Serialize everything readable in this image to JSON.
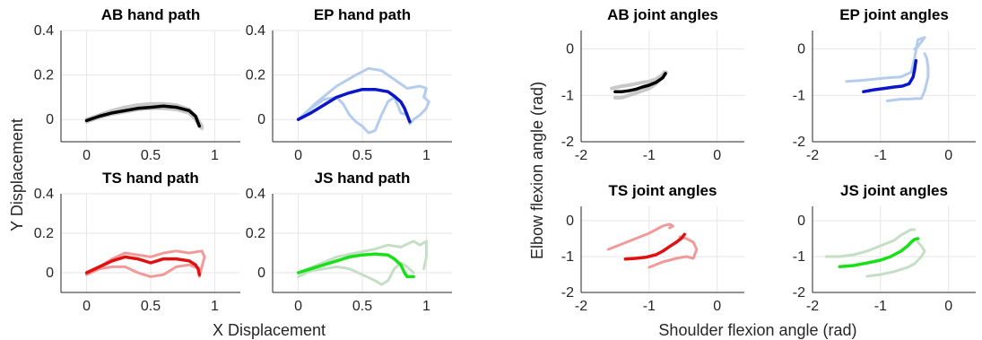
{
  "figure": {
    "left_ylabel": "Y Displacement",
    "left_xlabel": "X Displacement",
    "right_ylabel": "Elbow flexion angle (rad)",
    "right_xlabel": "Shoulder flexion angle (rad)"
  },
  "chart_data": [
    {
      "type": "line",
      "title": "AB hand path",
      "xticks": [
        "0",
        "0.5",
        "1"
      ],
      "yticks": [
        "0",
        "0.2",
        "0.4"
      ],
      "xlim": [
        -0.2,
        1.2
      ],
      "ylim": [
        -0.1,
        0.4
      ],
      "grid": true,
      "series": [
        {
          "color": "#c8c8c8",
          "width": 4,
          "x": [
            0,
            0.1,
            0.2,
            0.3,
            0.4,
            0.5,
            0.6,
            0.7,
            0.8,
            0.85,
            0.9
          ],
          "y": [
            -0.01,
            0.01,
            0.025,
            0.035,
            0.045,
            0.05,
            0.05,
            0.045,
            0.03,
            0.0,
            -0.04
          ]
        },
        {
          "color": "#c8c8c8",
          "width": 4,
          "x": [
            0,
            0.1,
            0.2,
            0.3,
            0.4,
            0.5,
            0.6,
            0.7,
            0.8,
            0.85,
            0.9
          ],
          "y": [
            0.0,
            0.02,
            0.04,
            0.055,
            0.065,
            0.07,
            0.07,
            0.065,
            0.045,
            0.015,
            -0.03
          ]
        },
        {
          "color": "#000000",
          "width": 3.5,
          "x": [
            0,
            0.1,
            0.2,
            0.3,
            0.4,
            0.5,
            0.6,
            0.7,
            0.8,
            0.85,
            0.88
          ],
          "y": [
            -0.005,
            0.015,
            0.03,
            0.04,
            0.05,
            0.055,
            0.06,
            0.055,
            0.04,
            0.015,
            -0.03
          ]
        }
      ]
    },
    {
      "type": "line",
      "title": "EP hand path",
      "xticks": [
        "0",
        "0.5",
        "1"
      ],
      "yticks": [
        "0",
        "0.2",
        "0.4"
      ],
      "xlim": [
        -0.2,
        1.2
      ],
      "ylim": [
        -0.1,
        0.4
      ],
      "grid": true,
      "series": [
        {
          "color": "#b5cdec",
          "width": 3,
          "x": [
            0,
            0.15,
            0.3,
            0.45,
            0.55,
            0.65,
            0.75,
            0.85,
            0.95,
            1.0,
            0.98,
            1.02,
            1.0,
            0.95,
            0.9,
            0.87
          ],
          "y": [
            0,
            0.08,
            0.15,
            0.2,
            0.23,
            0.22,
            0.18,
            0.14,
            0.15,
            0.14,
            0.1,
            0.08,
            0.05,
            0.02,
            0.0,
            -0.02
          ]
        },
        {
          "color": "#b5cdec",
          "width": 3,
          "x": [
            0,
            0.1,
            0.2,
            0.3,
            0.35,
            0.4,
            0.45,
            0.5,
            0.55,
            0.6,
            0.65,
            0.7,
            0.75,
            0.78,
            0.8,
            0.85
          ],
          "y": [
            0,
            0.05,
            0.09,
            0.1,
            0.07,
            0.02,
            -0.01,
            -0.03,
            -0.06,
            -0.05,
            0.02,
            0.08,
            0.1,
            0.06,
            0.03,
            0.02
          ]
        },
        {
          "color": "#0a16c8",
          "width": 3.5,
          "x": [
            0,
            0.1,
            0.2,
            0.3,
            0.4,
            0.5,
            0.6,
            0.7,
            0.75,
            0.8,
            0.83,
            0.85,
            0.87
          ],
          "y": [
            0,
            0.03,
            0.065,
            0.1,
            0.12,
            0.135,
            0.135,
            0.125,
            0.105,
            0.08,
            0.05,
            0.02,
            -0.01
          ]
        }
      ]
    },
    {
      "type": "line",
      "title": "TS hand path",
      "xticks": [
        "0",
        "0.5",
        "1"
      ],
      "yticks": [
        "0",
        "0.2",
        "0.4"
      ],
      "xlim": [
        -0.2,
        1.2
      ],
      "ylim": [
        -0.1,
        0.4
      ],
      "grid": true,
      "series": [
        {
          "color": "#f29a9a",
          "width": 3,
          "x": [
            0,
            0.1,
            0.2,
            0.3,
            0.4,
            0.5,
            0.6,
            0.7,
            0.8,
            0.9,
            0.92,
            0.9,
            0.88
          ],
          "y": [
            -0.01,
            0.03,
            0.07,
            0.1,
            0.09,
            0.08,
            0.1,
            0.11,
            0.1,
            0.11,
            0.08,
            0.03,
            -0.02
          ]
        },
        {
          "color": "#f29a9a",
          "width": 3,
          "x": [
            0,
            0.1,
            0.2,
            0.3,
            0.4,
            0.5,
            0.6,
            0.7,
            0.8,
            0.88
          ],
          "y": [
            -0.01,
            0.02,
            0.03,
            0.03,
            0.0,
            -0.02,
            -0.01,
            0.03,
            0.04,
            0.02
          ]
        },
        {
          "color": "#e01010",
          "width": 3.5,
          "x": [
            0,
            0.1,
            0.2,
            0.3,
            0.4,
            0.5,
            0.55,
            0.6,
            0.7,
            0.8,
            0.85,
            0.87,
            0.88
          ],
          "y": [
            0,
            0.03,
            0.06,
            0.08,
            0.07,
            0.05,
            0.06,
            0.07,
            0.07,
            0.06,
            0.04,
            0.02,
            -0.01
          ]
        }
      ]
    },
    {
      "type": "line",
      "title": "JS hand path",
      "xticks": [
        "0",
        "0.5",
        "1"
      ],
      "yticks": [
        "0",
        "0.2",
        "0.4"
      ],
      "xlim": [
        -0.2,
        1.2
      ],
      "ylim": [
        -0.1,
        0.4
      ],
      "grid": true,
      "series": [
        {
          "color": "#c5dec5",
          "width": 3,
          "x": [
            0,
            0.15,
            0.3,
            0.45,
            0.6,
            0.7,
            0.8,
            0.9,
            0.95,
            1.0,
            1.0,
            0.98
          ],
          "y": [
            0,
            0.04,
            0.08,
            0.1,
            0.12,
            0.14,
            0.13,
            0.16,
            0.14,
            0.16,
            0.08,
            0.02
          ]
        },
        {
          "color": "#c5dec5",
          "width": 3,
          "x": [
            0,
            0.1,
            0.2,
            0.3,
            0.4,
            0.5,
            0.6,
            0.65,
            0.7,
            0.75,
            0.8,
            0.85,
            0.9
          ],
          "y": [
            -0.02,
            0.01,
            0.02,
            0.03,
            0.02,
            -0.01,
            -0.04,
            -0.06,
            -0.04,
            0.02,
            0.05,
            0.03,
            0.0
          ]
        },
        {
          "color": "#18e018",
          "width": 3.5,
          "x": [
            0,
            0.1,
            0.2,
            0.3,
            0.4,
            0.5,
            0.6,
            0.7,
            0.75,
            0.8,
            0.83,
            0.85,
            0.9
          ],
          "y": [
            0,
            0.02,
            0.04,
            0.06,
            0.08,
            0.09,
            0.095,
            0.09,
            0.07,
            0.04,
            0.0,
            -0.02,
            -0.02
          ]
        }
      ]
    },
    {
      "type": "line",
      "title": "AB joint angles",
      "xticks": [
        "-2",
        "-1",
        "0"
      ],
      "yticks": [
        "-2",
        "-1",
        "0"
      ],
      "xlim": [
        -2,
        0.4
      ],
      "ylim": [
        -2,
        0.4
      ],
      "grid": true,
      "series": [
        {
          "color": "#c8c8c8",
          "width": 4,
          "x": [
            -1.5,
            -1.4,
            -1.3,
            -1.2,
            -1.1,
            -1.0,
            -0.9,
            -0.8,
            -0.75
          ],
          "y": [
            -1.05,
            -1.05,
            -1.0,
            -0.95,
            -0.9,
            -0.85,
            -0.75,
            -0.6,
            -0.5
          ]
        },
        {
          "color": "#c8c8c8",
          "width": 4,
          "x": [
            -1.55,
            -1.4,
            -1.3,
            -1.2,
            -1.1,
            -1.0,
            -0.9,
            -0.8,
            -0.78
          ],
          "y": [
            -0.85,
            -0.8,
            -0.78,
            -0.75,
            -0.72,
            -0.7,
            -0.65,
            -0.55,
            -0.5
          ]
        },
        {
          "color": "#000000",
          "width": 3.5,
          "x": [
            -1.5,
            -1.4,
            -1.3,
            -1.2,
            -1.1,
            -1.0,
            -0.9,
            -0.8,
            -0.76
          ],
          "y": [
            -0.92,
            -0.92,
            -0.9,
            -0.87,
            -0.82,
            -0.78,
            -0.72,
            -0.62,
            -0.53
          ]
        }
      ]
    },
    {
      "type": "line",
      "title": "EP joint angles",
      "xticks": [
        "-2",
        "-1",
        "0"
      ],
      "yticks": [
        "-2",
        "-1",
        "0"
      ],
      "xlim": [
        -2,
        0.4
      ],
      "ylim": [
        -2,
        0.4
      ],
      "grid": true,
      "series": [
        {
          "color": "#b5cdec",
          "width": 3,
          "x": [
            -1.5,
            -1.3,
            -1.1,
            -0.9,
            -0.7,
            -0.55,
            -0.5,
            -0.45,
            -0.35,
            -0.4,
            -0.45,
            -0.5
          ],
          "y": [
            -0.7,
            -0.68,
            -0.65,
            -0.62,
            -0.6,
            -0.5,
            -0.2,
            0.2,
            0.25,
            0.15,
            0.05,
            0.0
          ]
        },
        {
          "color": "#b5cdec",
          "width": 3,
          "x": [
            -0.9,
            -0.8,
            -0.7,
            -0.6,
            -0.5,
            -0.4,
            -0.35,
            -0.3,
            -0.3,
            -0.32,
            -0.35
          ],
          "y": [
            -1.12,
            -1.1,
            -1.08,
            -1.08,
            -1.07,
            -1.07,
            -0.9,
            -0.6,
            -0.4,
            -0.2,
            -0.1
          ]
        },
        {
          "color": "#0a16c8",
          "width": 3.5,
          "x": [
            -1.25,
            -1.1,
            -0.95,
            -0.8,
            -0.68,
            -0.58,
            -0.52,
            -0.5,
            -0.48
          ],
          "y": [
            -0.92,
            -0.88,
            -0.85,
            -0.82,
            -0.8,
            -0.75,
            -0.6,
            -0.45,
            -0.25
          ]
        }
      ]
    },
    {
      "type": "line",
      "title": "TS joint angles",
      "xticks": [
        "-2",
        "-1",
        "0"
      ],
      "yticks": [
        "-2",
        "-1",
        "0"
      ],
      "xlim": [
        -2,
        0.4
      ],
      "ylim": [
        -2,
        0.4
      ],
      "grid": true,
      "series": [
        {
          "color": "#f29a9a",
          "width": 3,
          "x": [
            -1.6,
            -1.4,
            -1.2,
            -1.0,
            -0.9,
            -0.8,
            -0.75,
            -0.7,
            -0.65,
            -0.7
          ],
          "y": [
            -0.8,
            -0.65,
            -0.5,
            -0.35,
            -0.25,
            -0.15,
            -0.12,
            -0.1,
            -0.15,
            -0.2
          ]
        },
        {
          "color": "#f29a9a",
          "width": 3,
          "x": [
            -1.0,
            -0.8,
            -0.6,
            -0.45,
            -0.35,
            -0.3,
            -0.35,
            -0.45,
            -0.55
          ],
          "y": [
            -1.3,
            -1.15,
            -1.05,
            -1.0,
            -1.05,
            -0.8,
            -0.6,
            -0.5,
            -0.45
          ]
        },
        {
          "color": "#e01010",
          "width": 3.5,
          "x": [
            -1.35,
            -1.2,
            -1.05,
            -0.9,
            -0.8,
            -0.7,
            -0.6,
            -0.52,
            -0.48
          ],
          "y": [
            -1.07,
            -1.05,
            -1.02,
            -0.95,
            -0.85,
            -0.72,
            -0.6,
            -0.48,
            -0.38
          ]
        }
      ]
    },
    {
      "type": "line",
      "title": "JS joint angles",
      "xticks": [
        "-2",
        "-1",
        "0"
      ],
      "yticks": [
        "-2",
        "-1",
        "0"
      ],
      "xlim": [
        -2,
        0.4
      ],
      "ylim": [
        -2,
        0.4
      ],
      "grid": true,
      "series": [
        {
          "color": "#c5dec5",
          "width": 3,
          "x": [
            -1.8,
            -1.6,
            -1.4,
            -1.2,
            -1.0,
            -0.8,
            -0.7,
            -0.6,
            -0.55,
            -0.5
          ],
          "y": [
            -1.0,
            -1.0,
            -0.95,
            -0.85,
            -0.7,
            -0.55,
            -0.4,
            -0.3,
            -0.25,
            -0.25
          ]
        },
        {
          "color": "#c5dec5",
          "width": 3,
          "x": [
            -1.2,
            -1.0,
            -0.8,
            -0.6,
            -0.5,
            -0.4,
            -0.35,
            -0.4,
            -0.45
          ],
          "y": [
            -1.55,
            -1.5,
            -1.42,
            -1.3,
            -1.2,
            -1.0,
            -0.85,
            -0.7,
            -0.6
          ]
        },
        {
          "color": "#18e018",
          "width": 3.5,
          "x": [
            -1.6,
            -1.4,
            -1.2,
            -1.0,
            -0.85,
            -0.7,
            -0.6,
            -0.55,
            -0.5,
            -0.45
          ],
          "y": [
            -1.28,
            -1.25,
            -1.18,
            -1.1,
            -1.0,
            -0.85,
            -0.7,
            -0.6,
            -0.52,
            -0.5
          ]
        }
      ]
    }
  ]
}
